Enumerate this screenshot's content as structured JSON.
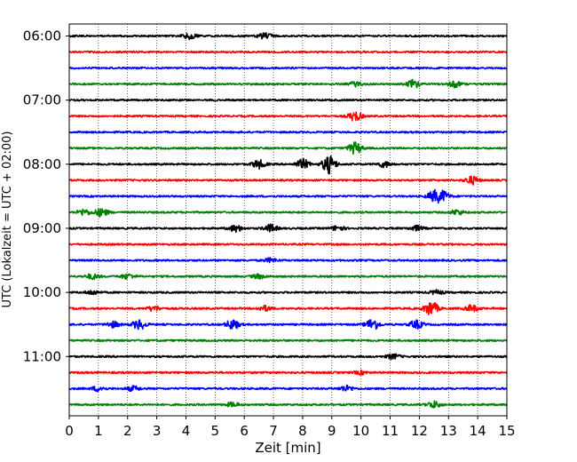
{
  "chart_data": {
    "type": "line",
    "title": "",
    "xlabel": "Zeit  [min]",
    "ylabel": "UTC (Lokalzeit = UTC + 02:00)",
    "xlim": [
      0,
      15
    ],
    "x_ticks": [
      "0",
      "1",
      "2",
      "3",
      "4",
      "5",
      "6",
      "7",
      "8",
      "9",
      "10",
      "11",
      "12",
      "13",
      "14",
      "15"
    ],
    "y_tick_labels": [
      "06:00",
      "07:00",
      "08:00",
      "09:00",
      "10:00",
      "11:00"
    ],
    "y_tick_trace_index": [
      0,
      4,
      8,
      12,
      16,
      20
    ],
    "grid": "vertical dotted at each minute",
    "trace_interval_minutes": 15,
    "colors": [
      "#000000",
      "#ff0000",
      "#0000ff",
      "#008000"
    ],
    "traces": [
      {
        "start": "06:00",
        "color": "#000000",
        "events": [
          {
            "t": 4.1,
            "amp": 0.35
          },
          {
            "t": 6.7,
            "amp": 0.35
          }
        ]
      },
      {
        "start": "06:15",
        "color": "#ff0000",
        "events": []
      },
      {
        "start": "06:30",
        "color": "#0000ff",
        "events": []
      },
      {
        "start": "06:45",
        "color": "#008000",
        "events": [
          {
            "t": 9.8,
            "amp": 0.25
          },
          {
            "t": 11.8,
            "amp": 0.5
          },
          {
            "t": 13.2,
            "amp": 0.35
          }
        ]
      },
      {
        "start": "07:00",
        "color": "#000000",
        "events": []
      },
      {
        "start": "07:15",
        "color": "#ff0000",
        "events": [
          {
            "t": 9.8,
            "amp": 0.6
          }
        ]
      },
      {
        "start": "07:30",
        "color": "#0000ff",
        "events": []
      },
      {
        "start": "07:45",
        "color": "#008000",
        "events": [
          {
            "t": 9.8,
            "amp": 0.7
          }
        ]
      },
      {
        "start": "08:00",
        "color": "#000000",
        "events": [
          {
            "t": 6.5,
            "amp": 0.5
          },
          {
            "t": 8.0,
            "amp": 0.6
          },
          {
            "t": 8.9,
            "amp": 1.1
          },
          {
            "t": 10.8,
            "amp": 0.35
          }
        ]
      },
      {
        "start": "08:15",
        "color": "#ff0000",
        "events": [
          {
            "t": 13.8,
            "amp": 0.5
          }
        ]
      },
      {
        "start": "08:30",
        "color": "#0000ff",
        "events": [
          {
            "t": 12.5,
            "amp": 0.6
          },
          {
            "t": 12.8,
            "amp": 0.6
          }
        ]
      },
      {
        "start": "08:45",
        "color": "#008000",
        "events": [
          {
            "t": 0.5,
            "amp": 0.35
          },
          {
            "t": 1.1,
            "amp": 0.5
          },
          {
            "t": 13.3,
            "amp": 0.3
          }
        ]
      },
      {
        "start": "09:00",
        "color": "#000000",
        "events": [
          {
            "t": 5.7,
            "amp": 0.4
          },
          {
            "t": 6.9,
            "amp": 0.45
          },
          {
            "t": 9.2,
            "amp": 0.3
          },
          {
            "t": 11.9,
            "amp": 0.3
          }
        ]
      },
      {
        "start": "09:15",
        "color": "#ff0000",
        "events": []
      },
      {
        "start": "09:30",
        "color": "#0000ff",
        "events": [
          {
            "t": 6.9,
            "amp": 0.25
          }
        ]
      },
      {
        "start": "09:45",
        "color": "#008000",
        "events": [
          {
            "t": 0.8,
            "amp": 0.3
          },
          {
            "t": 2.0,
            "amp": 0.3
          },
          {
            "t": 6.5,
            "amp": 0.25
          }
        ]
      },
      {
        "start": "10:00",
        "color": "#000000",
        "events": [
          {
            "t": 0.8,
            "amp": 0.25
          },
          {
            "t": 12.6,
            "amp": 0.25
          }
        ]
      },
      {
        "start": "10:15",
        "color": "#ff0000",
        "events": [
          {
            "t": 2.9,
            "amp": 0.3
          },
          {
            "t": 6.7,
            "amp": 0.3
          },
          {
            "t": 12.4,
            "amp": 0.9
          },
          {
            "t": 13.8,
            "amp": 0.4
          }
        ]
      },
      {
        "start": "10:30",
        "color": "#0000ff",
        "events": [
          {
            "t": 1.5,
            "amp": 0.35
          },
          {
            "t": 2.4,
            "amp": 0.6
          },
          {
            "t": 5.6,
            "amp": 0.6
          },
          {
            "t": 10.4,
            "amp": 0.7
          },
          {
            "t": 11.9,
            "amp": 0.5
          }
        ]
      },
      {
        "start": "10:45",
        "color": "#008000",
        "events": []
      },
      {
        "start": "11:00",
        "color": "#000000",
        "events": [
          {
            "t": 11.1,
            "amp": 0.3
          }
        ]
      },
      {
        "start": "11:15",
        "color": "#ff0000",
        "events": [
          {
            "t": 10.0,
            "amp": 0.2
          }
        ]
      },
      {
        "start": "11:30",
        "color": "#0000ff",
        "events": [
          {
            "t": 1.0,
            "amp": 0.3
          },
          {
            "t": 2.2,
            "amp": 0.3
          },
          {
            "t": 9.5,
            "amp": 0.35
          }
        ]
      },
      {
        "start": "11:45",
        "color": "#008000",
        "events": [
          {
            "t": 5.6,
            "amp": 0.25
          },
          {
            "t": 12.5,
            "amp": 0.4
          }
        ]
      }
    ]
  }
}
